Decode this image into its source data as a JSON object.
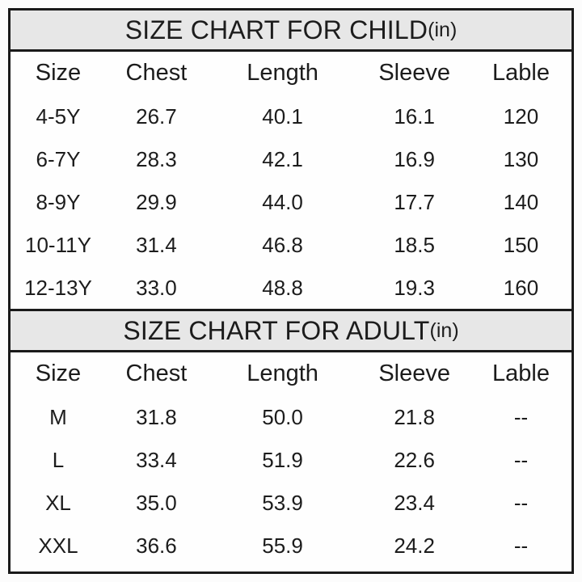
{
  "page": {
    "background": "#fcfcfc",
    "table_background": "#fefefe",
    "border_color": "#1a1a1a",
    "section_header_background": "#e7e7e7",
    "text_color": "#1c1c1c"
  },
  "child": {
    "title": "SIZE CHART FOR CHILD",
    "unit": "(in)",
    "columns": [
      "Size",
      "Chest",
      "Length",
      "Sleeve",
      "Lable"
    ],
    "rows": [
      [
        "4-5Y",
        "26.7",
        "40.1",
        "16.1",
        "120"
      ],
      [
        "6-7Y",
        "28.3",
        "42.1",
        "16.9",
        "130"
      ],
      [
        "8-9Y",
        "29.9",
        "44.0",
        "17.7",
        "140"
      ],
      [
        "10-11Y",
        "31.4",
        "46.8",
        "18.5",
        "150"
      ],
      [
        "12-13Y",
        "33.0",
        "48.8",
        "19.3",
        "160"
      ]
    ]
  },
  "adult": {
    "title": "SIZE CHART FOR ADULT",
    "unit": "(in)",
    "columns": [
      "Size",
      "Chest",
      "Length",
      "Sleeve",
      "Lable"
    ],
    "rows": [
      [
        "M",
        "31.8",
        "50.0",
        "21.8",
        "--"
      ],
      [
        "L",
        "33.4",
        "51.9",
        "22.6",
        "--"
      ],
      [
        "XL",
        "35.0",
        "53.9",
        "23.4",
        "--"
      ],
      [
        "XXL",
        "36.6",
        "55.9",
        "24.2",
        "--"
      ]
    ]
  },
  "chart_data": [
    {
      "type": "table",
      "title": "SIZE CHART FOR CHILD(in)",
      "columns": [
        "Size",
        "Chest",
        "Length",
        "Sleeve",
        "Lable"
      ],
      "rows": [
        [
          "4-5Y",
          26.7,
          40.1,
          16.1,
          120
        ],
        [
          "6-7Y",
          28.3,
          42.1,
          16.9,
          130
        ],
        [
          "8-9Y",
          29.9,
          44.0,
          17.7,
          140
        ],
        [
          "10-11Y",
          31.4,
          46.8,
          18.5,
          150
        ],
        [
          "12-13Y",
          33.0,
          48.8,
          19.3,
          160
        ]
      ]
    },
    {
      "type": "table",
      "title": "SIZE CHART FOR ADULT(in)",
      "columns": [
        "Size",
        "Chest",
        "Length",
        "Sleeve",
        "Lable"
      ],
      "rows": [
        [
          "M",
          31.8,
          50.0,
          21.8,
          "--"
        ],
        [
          "L",
          33.4,
          51.9,
          22.6,
          "--"
        ],
        [
          "XL",
          35.0,
          53.9,
          23.4,
          "--"
        ],
        [
          "XXL",
          36.6,
          55.9,
          24.2,
          "--"
        ]
      ]
    }
  ]
}
